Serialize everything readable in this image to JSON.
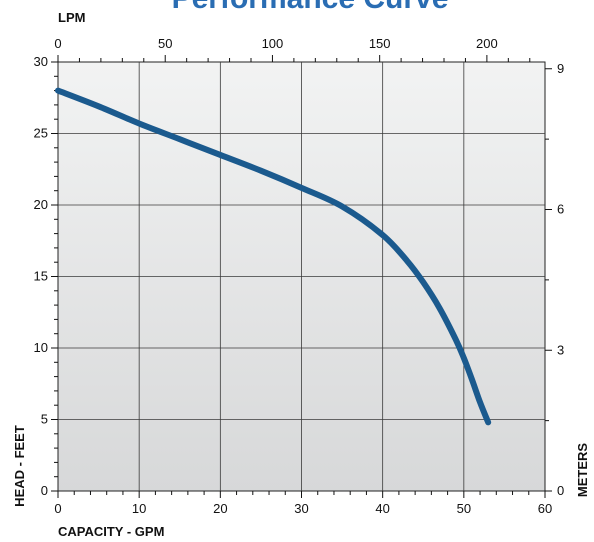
{
  "chart_data": {
    "type": "line",
    "title": "Performance Curve",
    "xlabel": "CAPACITY - GPM",
    "ylabel": "HEAD - FEET",
    "x2label": "LPM",
    "y2label": "METERS",
    "xlim": [
      0,
      60
    ],
    "ylim": [
      0,
      30
    ],
    "x2lim": [
      0,
      227.1
    ],
    "y2lim": [
      0,
      9.144
    ],
    "xticks": [
      0,
      10,
      20,
      30,
      40,
      50,
      60
    ],
    "yticks": [
      0,
      5,
      10,
      15,
      20,
      25,
      30
    ],
    "x2ticks": [
      0,
      50,
      100,
      150,
      200
    ],
    "y2ticks": [
      0,
      3,
      6,
      9
    ],
    "grid": true,
    "series": [
      {
        "color": "#1b5a8e",
        "x": [
          0,
          5,
          10,
          15,
          20,
          25,
          30,
          35,
          40,
          43,
          45,
          47,
          49,
          50,
          51,
          52,
          53
        ],
        "y": [
          28,
          26.9,
          25.7,
          24.6,
          23.5,
          22.4,
          21.2,
          19.9,
          17.9,
          16.1,
          14.6,
          12.8,
          10.6,
          9.3,
          7.8,
          6.2,
          4.8
        ]
      }
    ]
  }
}
